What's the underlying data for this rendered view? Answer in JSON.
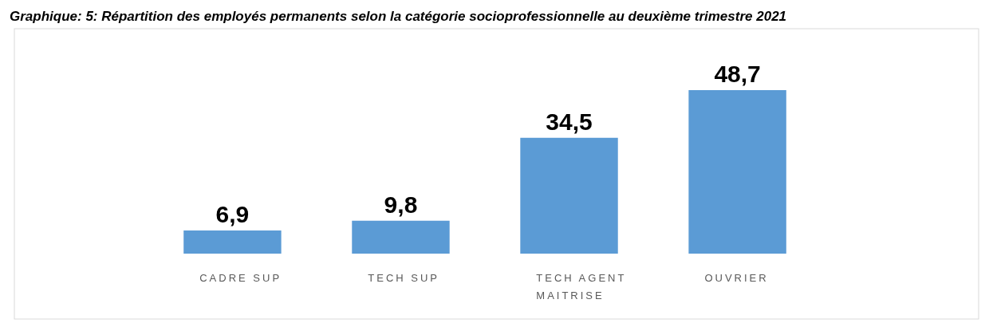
{
  "chart_data": {
    "type": "bar",
    "title": "Graphique: 5: Répartition des employés permanents selon la catégorie socioprofessionnelle au deuxième trimestre 2021",
    "categories": [
      "CADRE SUP",
      "TECH SUP",
      "TECH AGENT MAITRISE",
      "OUVRIER"
    ],
    "values": [
      6.9,
      9.8,
      34.5,
      48.7
    ],
    "color": "#5b9bd5",
    "value_labels": [
      "6,9",
      "9,8",
      "34,5",
      "48,7"
    ]
  }
}
